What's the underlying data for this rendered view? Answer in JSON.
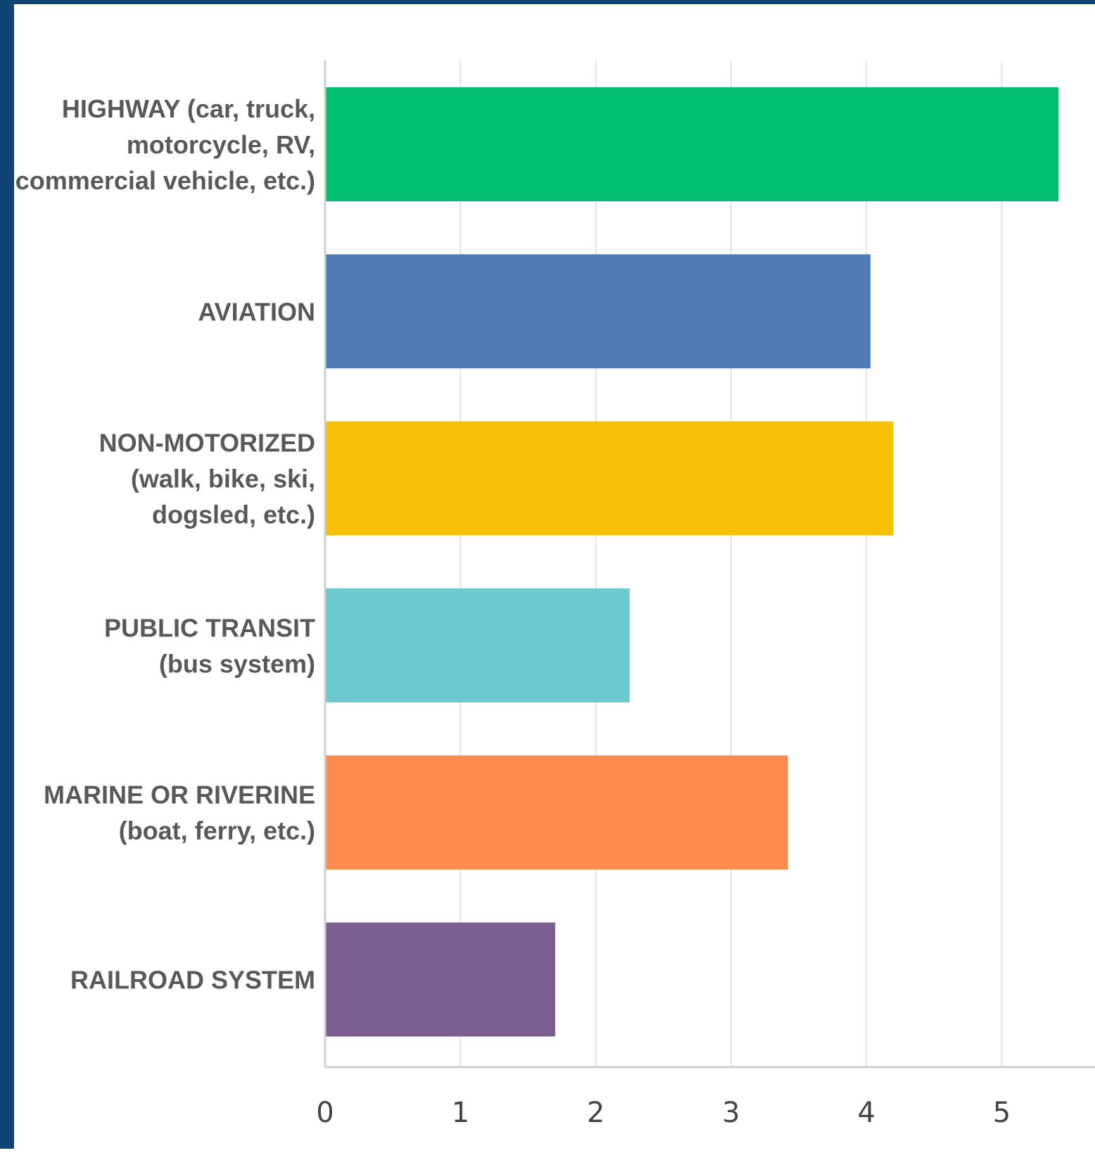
{
  "chart_data": {
    "type": "bar",
    "orientation": "horizontal",
    "title": "",
    "xlabel": "",
    "ylabel": "",
    "xlim": [
      0,
      5.6
    ],
    "ticks": [
      "0",
      "1",
      "2",
      "3",
      "4",
      "5"
    ],
    "grid": true,
    "legend": "none",
    "categories": [
      [
        "HIGHWAY (car, truck,",
        "motorcycle, RV,",
        "commercial vehicle, etc.)"
      ],
      [
        "AVIATION"
      ],
      [
        "NON-MOTORIZED",
        "(walk, bike, ski,",
        "dogsled, etc.)"
      ],
      [
        "PUBLIC TRANSIT",
        "(bus system)"
      ],
      [
        "MARINE OR RIVERINE",
        "(boat, ferry, etc.)"
      ],
      [
        "RAILROAD SYSTEM"
      ]
    ],
    "values": [
      5.42,
      4.03,
      4.2,
      2.25,
      3.42,
      1.7
    ],
    "colors": [
      "#00bf6f",
      "#507cb6",
      "#f7c005",
      "#6bc8cd",
      "#ff8b4f",
      "#7d5e90"
    ]
  },
  "colors": {
    "frame": "#0e4574",
    "gridline": "#e3e3e3",
    "axis": "#cfcfcf"
  }
}
